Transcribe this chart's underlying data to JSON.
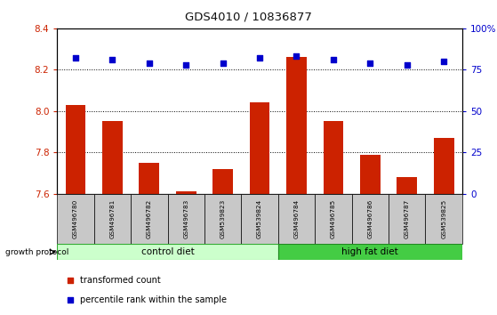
{
  "title": "GDS4010 / 10836877",
  "samples": [
    "GSM496780",
    "GSM496781",
    "GSM496782",
    "GSM496783",
    "GSM539823",
    "GSM539824",
    "GSM496784",
    "GSM496785",
    "GSM496786",
    "GSM496787",
    "GSM539825"
  ],
  "red_values": [
    8.03,
    7.95,
    7.75,
    7.61,
    7.72,
    8.04,
    8.26,
    7.95,
    7.79,
    7.68,
    7.87
  ],
  "blue_values": [
    82,
    81,
    79,
    78,
    79,
    82,
    83,
    81,
    79,
    78,
    80
  ],
  "ylim_left": [
    7.6,
    8.4
  ],
  "ylim_right": [
    0,
    100
  ],
  "yticks_left": [
    7.6,
    7.8,
    8.0,
    8.2,
    8.4
  ],
  "yticks_right": [
    0,
    25,
    50,
    75,
    100
  ],
  "ytick_labels_right": [
    "0",
    "25",
    "50",
    "75",
    "100%"
  ],
  "grid_values": [
    7.8,
    8.0,
    8.2
  ],
  "control_diet_indices": [
    0,
    1,
    2,
    3,
    4,
    5
  ],
  "high_fat_indices": [
    6,
    7,
    8,
    9,
    10
  ],
  "control_label": "control diet",
  "high_fat_label": "high fat diet",
  "growth_protocol_label": "growth protocol",
  "legend_red_label": "transformed count",
  "legend_blue_label": "percentile rank within the sample",
  "bar_color": "#cc2200",
  "dot_color": "#0000cc",
  "control_color": "#ccffcc",
  "high_fat_color": "#44cc44",
  "bar_width": 0.55,
  "title_color": "#111111",
  "cell_color": "#c8c8c8"
}
